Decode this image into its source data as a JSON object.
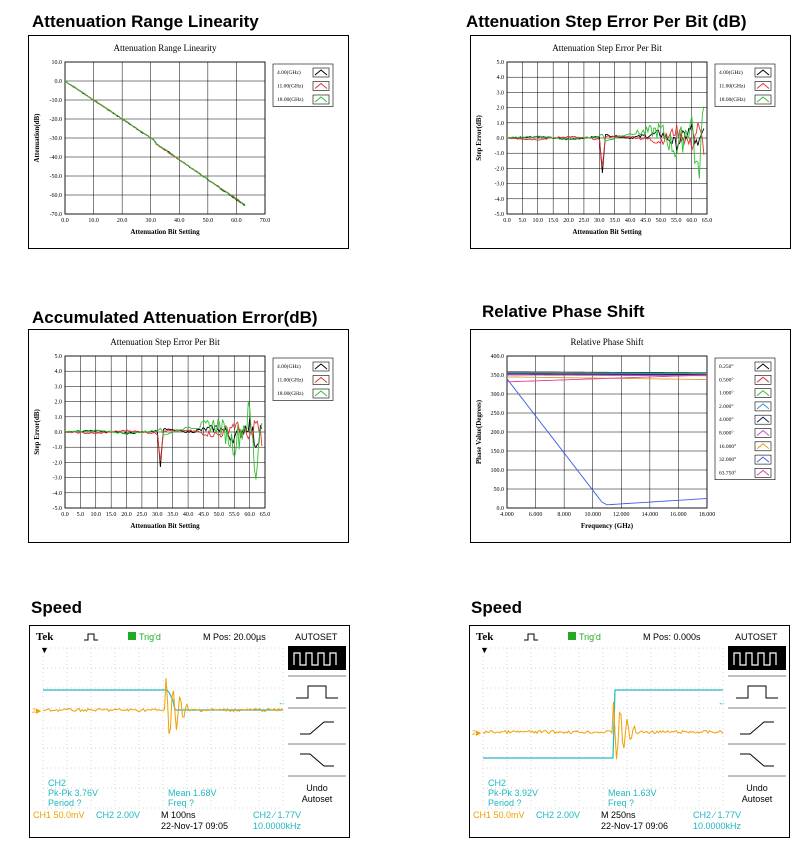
{
  "sections": {
    "s1": "Attenuation Range Linearity",
    "s2": "Attenuation Step Error Per Bit (dB)",
    "s3": "Accumulated Attenuation Error(dB)",
    "s4": "Relative Phase Shift",
    "s5": "Speed",
    "s6": "Speed"
  },
  "chart_data": [
    {
      "id": "lin",
      "type": "line",
      "title": "Attenuation Range Linearity",
      "xlabel": "Attenuation Bit Setting",
      "ylabel": "Attenuation(dB)",
      "xlim": [
        0,
        70
      ],
      "ylim": [
        -70,
        10
      ],
      "xticks": [
        "0.0",
        "10.0",
        "20.0",
        "30.0",
        "40.0",
        "50.0",
        "60.0",
        "70.0"
      ],
      "yticks": [
        "10.0",
        "0.0",
        "-10.0",
        "-20.0",
        "-30.0",
        "-40.0",
        "-50.0",
        "-60.0",
        "-70.0"
      ],
      "grid": true,
      "legend": "top-right",
      "series": [
        {
          "name": "4.00(GHz)",
          "color": "#000000",
          "x": [
            0,
            31,
            32,
            63
          ],
          "y": [
            0,
            -31,
            -33,
            -65.5
          ]
        },
        {
          "name": "11.00(GHz)",
          "color": "#e03030",
          "x": [
            0,
            31,
            32,
            63
          ],
          "y": [
            0,
            -31,
            -33.3,
            -65
          ]
        },
        {
          "name": "18.00(GHz)",
          "color": "#30c030",
          "x": [
            0,
            31,
            32,
            63
          ],
          "y": [
            0,
            -30.8,
            -33,
            -65.3
          ]
        }
      ]
    },
    {
      "id": "step",
      "type": "line",
      "title": "Attenuation Step Error Per Bit",
      "xlabel": "Attenuation Bit Setting",
      "ylabel": "Step Error(dB)",
      "xlim": [
        0,
        65
      ],
      "ylim": [
        -5,
        5
      ],
      "xticks": [
        "0.0",
        "5.0",
        "10.0",
        "15.0",
        "20.0",
        "25.0",
        "30.0",
        "35.0",
        "40.0",
        "45.0",
        "50.0",
        "55.0",
        "60.0",
        "65.0"
      ],
      "yticks": [
        "5.0",
        "4.0",
        "3.0",
        "2.0",
        "1.0",
        "0.0",
        "-1.0",
        "-2.0",
        "-3.0",
        "-4.0",
        "-5.0"
      ],
      "grid": true,
      "legend": "top-right",
      "series": [
        {
          "name": "4.00(GHz)",
          "color": "#000000",
          "x": [
            0,
            10,
            20,
            30,
            31,
            32,
            40,
            50,
            55,
            60,
            62,
            64
          ],
          "y": [
            0.0,
            0.1,
            -0.1,
            0.1,
            -2.3,
            0.2,
            0.0,
            0.3,
            -0.4,
            0.6,
            -0.8,
            0.5
          ]
        },
        {
          "name": "11.00(GHz)",
          "color": "#e03030",
          "x": [
            0,
            10,
            20,
            30,
            31,
            32,
            40,
            50,
            55,
            60,
            62,
            64
          ],
          "y": [
            0.0,
            -0.1,
            0.1,
            -0.1,
            -1.9,
            0.1,
            0.1,
            -0.2,
            0.5,
            -0.5,
            0.7,
            -0.6
          ]
        },
        {
          "name": "18.00(GHz)",
          "color": "#30c030",
          "x": [
            0,
            10,
            20,
            30,
            31,
            32,
            40,
            50,
            55,
            60,
            62,
            64
          ],
          "y": [
            0.0,
            0.1,
            -0.1,
            0.1,
            0.3,
            -0.2,
            0.3,
            0.5,
            -0.8,
            1.2,
            -2.8,
            1.8
          ]
        }
      ]
    },
    {
      "id": "acc",
      "type": "line",
      "title": "Attenuation Step Error Per Bit",
      "xlabel": "Attenuation Bit Setting",
      "ylabel": "Step Error(dB)",
      "xlim": [
        0,
        65
      ],
      "ylim": [
        -5,
        5
      ],
      "xticks": [
        "0.0",
        "5.0",
        "10.0",
        "15.0",
        "20.0",
        "25.0",
        "30.0",
        "35.0",
        "40.0",
        "45.0",
        "50.0",
        "55.0",
        "60.0",
        "65.0"
      ],
      "yticks": [
        "5.0",
        "4.0",
        "3.0",
        "2.0",
        "1.0",
        "0.0",
        "-1.0",
        "-2.0",
        "-3.0",
        "-4.0",
        "-5.0"
      ],
      "grid": true,
      "legend": "top-right",
      "series": [
        {
          "name": "4.00(GHz)",
          "color": "#000000",
          "x": [
            0,
            10,
            20,
            30,
            31,
            32,
            40,
            50,
            55,
            60,
            62,
            64
          ],
          "y": [
            0.0,
            0.1,
            -0.1,
            0.1,
            -2.3,
            0.2,
            0.0,
            0.3,
            -0.4,
            0.6,
            -0.8,
            0.5
          ]
        },
        {
          "name": "11.00(GHz)",
          "color": "#e03030",
          "x": [
            0,
            10,
            20,
            30,
            31,
            32,
            40,
            50,
            55,
            60,
            62,
            64
          ],
          "y": [
            0.0,
            -0.1,
            0.1,
            -0.1,
            -1.9,
            0.1,
            0.1,
            -0.2,
            0.5,
            -0.5,
            0.7,
            -0.6
          ]
        },
        {
          "name": "18.00(GHz)",
          "color": "#30c030",
          "x": [
            0,
            10,
            20,
            30,
            31,
            32,
            40,
            50,
            55,
            60,
            62,
            64
          ],
          "y": [
            0.0,
            0.1,
            -0.1,
            0.1,
            0.3,
            -0.2,
            0.3,
            0.5,
            -0.8,
            1.2,
            -2.8,
            1.8
          ]
        }
      ]
    },
    {
      "id": "phase",
      "type": "line",
      "title": "Relative Phase Shift",
      "xlabel": "Frequency (GHz)",
      "ylabel": "Phase Value(Degrees)",
      "xlim": [
        4,
        18
      ],
      "ylim": [
        0,
        400
      ],
      "xticks": [
        "4.000",
        "6.000",
        "8.000",
        "10.000",
        "12.000",
        "14.000",
        "16.000",
        "18.000"
      ],
      "yticks": [
        "400.0",
        "350.0",
        "300.0",
        "250.0",
        "200.0",
        "150.0",
        "100.0",
        "50.0",
        "0.0"
      ],
      "grid": true,
      "legend": "top-right",
      "series": [
        {
          "name": "0.250°",
          "color": "#000000",
          "x": [
            4,
            18
          ],
          "y": [
            358,
            356
          ]
        },
        {
          "name": "0.500°",
          "color": "#e03030",
          "x": [
            4,
            18
          ],
          "y": [
            357,
            355
          ]
        },
        {
          "name": "1.000°",
          "color": "#30c030",
          "x": [
            4,
            18
          ],
          "y": [
            356,
            355
          ]
        },
        {
          "name": "2.000°",
          "color": "#3090e0",
          "x": [
            4,
            18
          ],
          "y": [
            355,
            353
          ]
        },
        {
          "name": "4.000°",
          "color": "#202060",
          "x": [
            4,
            18
          ],
          "y": [
            353,
            351
          ]
        },
        {
          "name": "8.000°",
          "color": "#c050d0",
          "x": [
            4,
            18
          ],
          "y": [
            350,
            348
          ]
        },
        {
          "name": "16.000°",
          "color": "#e0a020",
          "x": [
            4,
            18
          ],
          "y": [
            345,
            338
          ]
        },
        {
          "name": "32.000°",
          "color": "#4060e0",
          "x": [
            4,
            10.8,
            18
          ],
          "y": [
            340,
            8,
            25
          ]
        },
        {
          "name": "63.750°",
          "color": "#e040a0",
          "x": [
            4,
            18
          ],
          "y": [
            332,
            350
          ]
        }
      ]
    }
  ],
  "scopes": [
    {
      "brand": "Tek",
      "trig": "Trig'd",
      "mpos": "M Pos: 20.00µs",
      "autoset": "AUTOSET",
      "ch2": "CH2",
      "pkpk": "Pk-Pk 3.76V",
      "period": "Period ?",
      "mean": "Mean 1.68V",
      "freq": "Freq ?",
      "ch1scale": "CH1  50.0mV",
      "ch2scale": "CH2  2.00V",
      "timebase": "M 100ns",
      "date": "22-Nov-17 09:05",
      "trigsrc": "CH2 ∕ 1.77V",
      "trigfreq": "10.0000kHz",
      "undo": "Undo",
      "undo2": "Autoset",
      "edge_fraction": 0.52
    },
    {
      "brand": "Tek",
      "trig": "Trig'd",
      "mpos": "M Pos: 0.000s",
      "autoset": "AUTOSET",
      "ch2": "CH2",
      "pkpk": "Pk-Pk 3.92V",
      "period": "Period ?",
      "mean": "Mean 1.63V",
      "freq": "Freq ?",
      "ch1scale": "CH1  50.0mV",
      "ch2scale": "CH2  2.00V",
      "timebase": "M 250ns",
      "date": "22-Nov-17 09:06",
      "trigsrc": "CH2 ∕ 1.77V",
      "trigfreq": "10.0000kHz",
      "undo": "Undo",
      "undo2": "Autoset",
      "edge_fraction": 0.55
    }
  ]
}
